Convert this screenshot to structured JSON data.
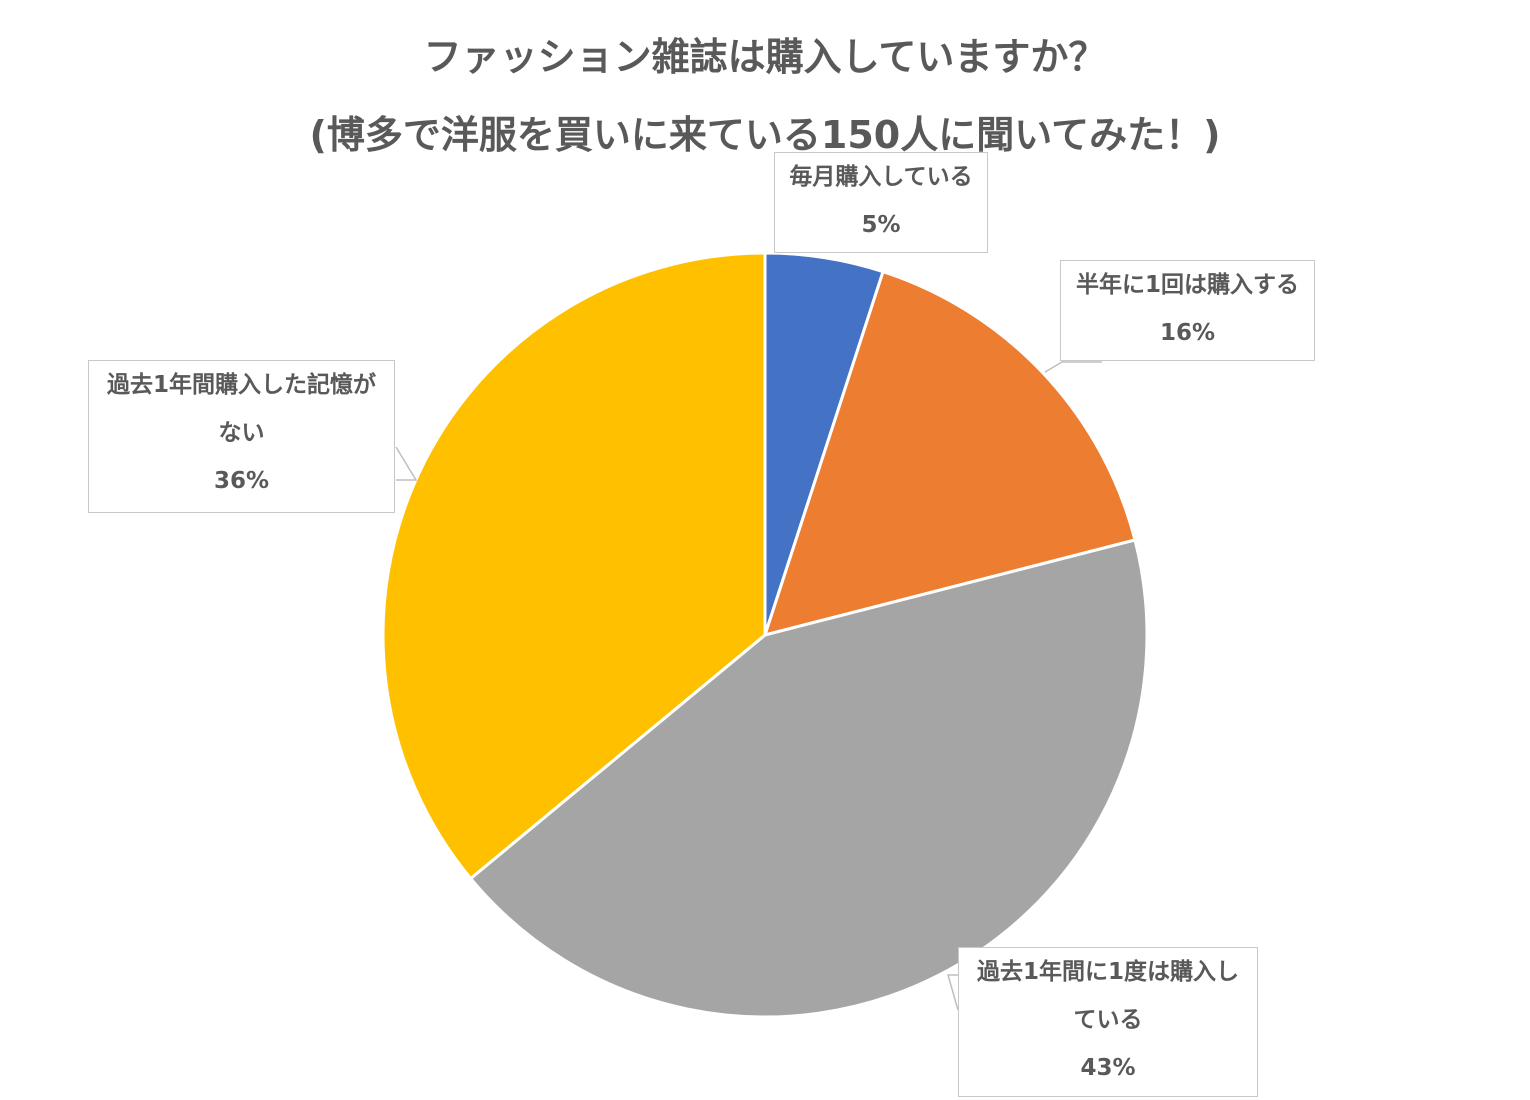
{
  "title_line1": "ファッション雑誌は購入していますか？",
  "title_line2": "(博多で洋服を買いに来ている150人に聞いてみた！)",
  "chart_data": {
    "type": "pie",
    "start_angle_deg": 0,
    "direction": "clockwise",
    "slices": [
      {
        "label_lines": [
          "毎月購入している"
        ],
        "value": 5,
        "pct_label": "5%",
        "color": "#4472C4"
      },
      {
        "label_lines": [
          "半年に1回は購入する"
        ],
        "value": 16,
        "pct_label": "16%",
        "color": "#ED7D31"
      },
      {
        "label_lines": [
          "過去1年間に1度は購入し",
          "ている"
        ],
        "value": 43,
        "pct_label": "43%",
        "color": "#A5A5A5"
      },
      {
        "label_lines": [
          "過去1年間購入した記憶が",
          "ない"
        ],
        "value": 36,
        "pct_label": "36%",
        "color": "#FFC000"
      }
    ]
  }
}
